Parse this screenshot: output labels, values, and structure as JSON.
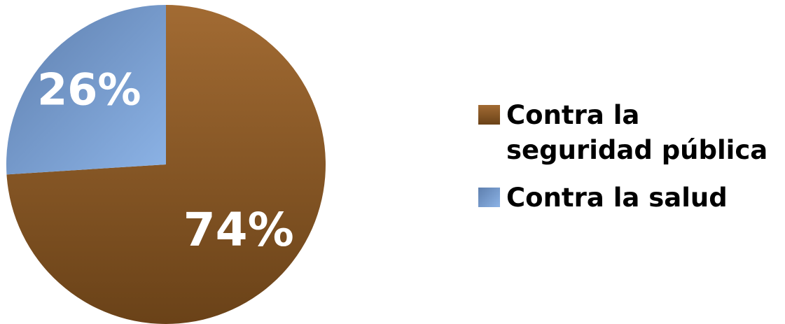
{
  "chart_data": {
    "type": "pie",
    "slices": [
      {
        "name": "Contra la seguridad pública",
        "value": 74,
        "label": "74%",
        "color": "#8c5a2c"
      },
      {
        "name": "Contra la salud",
        "value": 26,
        "label": "26%",
        "color": "#6b93c8"
      }
    ],
    "legend_position": "right"
  }
}
